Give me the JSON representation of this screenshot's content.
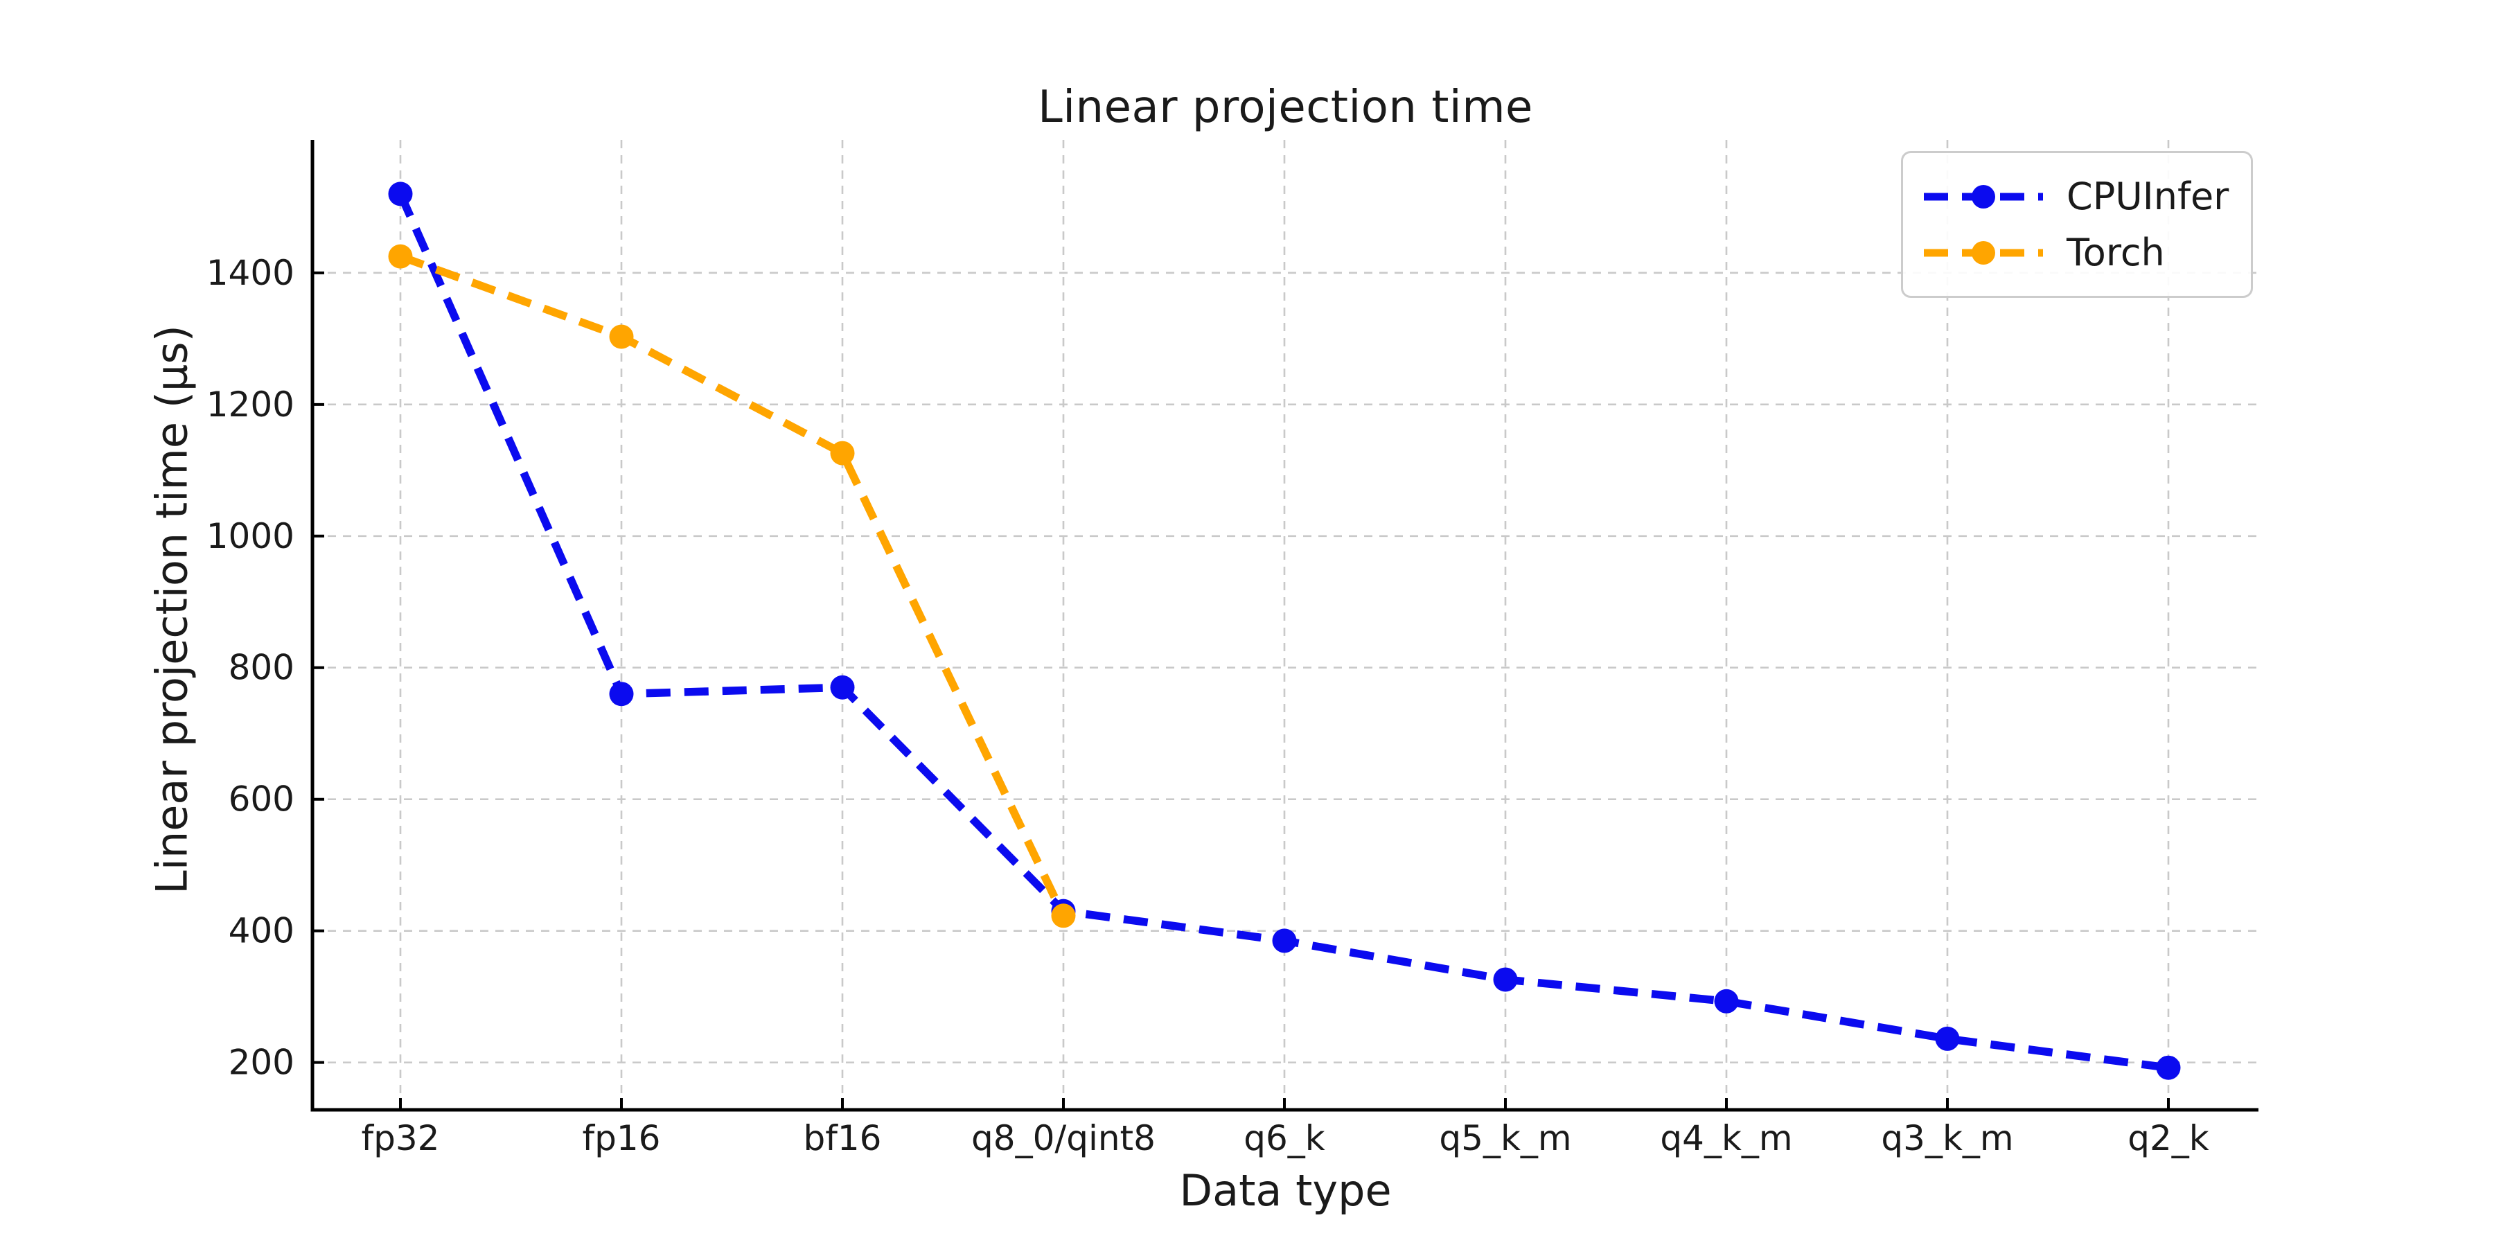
{
  "chart_data": {
    "type": "line",
    "title": "Linear projection time",
    "xlabel": "Data type",
    "ylabel": "Linear projection time (µs)",
    "categories": [
      "fp32",
      "fp16",
      "bf16",
      "q8_0/qint8",
      "q6_k",
      "q5_k_m",
      "q4_k_m",
      "q3_k_m",
      "q2_k"
    ],
    "series": [
      {
        "name": "CPUInfer",
        "color": "#0b0bef",
        "linestyle": "dashed",
        "marker": "circle",
        "values": [
          1520,
          760,
          770,
          430,
          385,
          326,
          293,
          236,
          192
        ]
      },
      {
        "name": "Torch",
        "color": "#ffa500",
        "linestyle": "dashed",
        "marker": "circle",
        "values": [
          1425,
          1303,
          1126,
          423,
          null,
          null,
          null,
          null,
          null
        ]
      }
    ],
    "yticks": [
      200,
      400,
      600,
      800,
      1000,
      1200,
      1400
    ],
    "ylim": [
      128,
      1602
    ],
    "grid": true,
    "grid_color": "#c9c9c9",
    "legend_position": "upper right",
    "text_color": "#1a1a1a",
    "spine_color": "#000000"
  }
}
